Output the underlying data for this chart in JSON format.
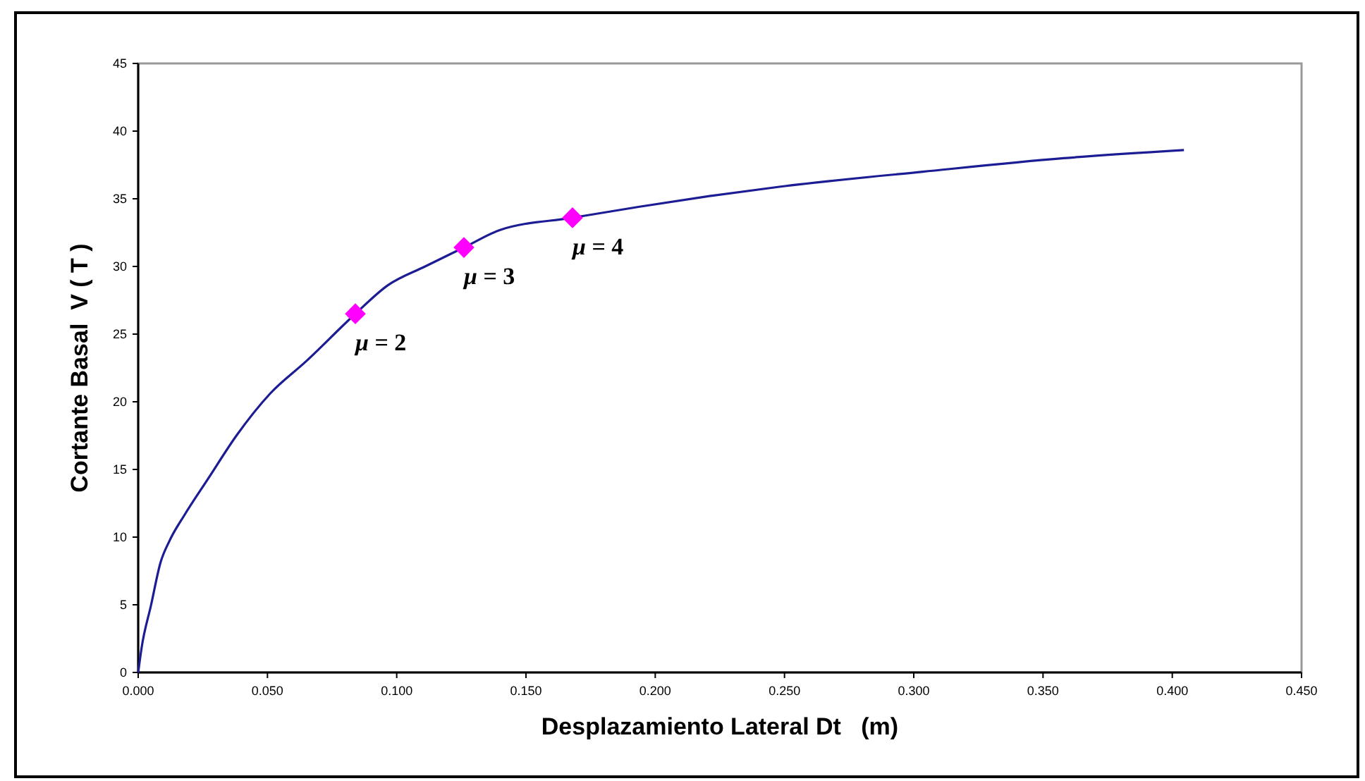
{
  "chart_data": {
    "type": "line",
    "xlabel": "Desplazamiento Lateral Dt   (m)",
    "ylabel": "Cortante Basal  V ( T )",
    "xlim": [
      0,
      0.45
    ],
    "xticks": [
      {
        "value": 0,
        "label": "0.000"
      },
      {
        "value": 0.05,
        "label": "0.050"
      },
      {
        "value": 0.1,
        "label": "0.100"
      },
      {
        "value": 0.15,
        "label": "0.150"
      },
      {
        "value": 0.2,
        "label": "0.200"
      },
      {
        "value": 0.25,
        "label": "0.250"
      },
      {
        "value": 0.3,
        "label": "0.300"
      },
      {
        "value": 0.35,
        "label": "0.350"
      },
      {
        "value": 0.4,
        "label": "0.400"
      },
      {
        "value": 0.45,
        "label": "0.450"
      }
    ],
    "ylim": [
      0,
      45
    ],
    "yticks": [
      0,
      5,
      10,
      15,
      20,
      25,
      30,
      35,
      40,
      45
    ],
    "grid": false,
    "series": [
      {
        "color": "#1c1c94",
        "marker": "none",
        "x": [
          0,
          0.0013,
          0.005,
          0.0086,
          0.0123,
          0.0178,
          0.027,
          0.038,
          0.051,
          0.065,
          0.084,
          0.0965,
          0.111,
          0.126,
          0.14,
          0.168,
          0.1935,
          0.221,
          0.2485,
          0.3035,
          0.358,
          0.4045
        ],
        "values": [
          0,
          1.8,
          5,
          8.1,
          9.8,
          11.6,
          14.3,
          17.5,
          20.6,
          23,
          26.5,
          28.6,
          30,
          31.4,
          32.7,
          33.6,
          34.4,
          35.2,
          35.9,
          37,
          38,
          38.6
        ]
      },
      {
        "type": "scatter",
        "color": "#ff00ff",
        "marker": "diamond",
        "x": [
          0.084,
          0.126,
          0.168
        ],
        "values": [
          26.5,
          31.4,
          33.6
        ]
      }
    ],
    "annotations": [
      {
        "text": "μ = 2",
        "x": 0.084,
        "y": 26.5
      },
      {
        "text": "μ = 3",
        "x": 0.126,
        "y": 31.4
      },
      {
        "text": "μ = 4",
        "x": 0.168,
        "y": 33.6
      }
    ]
  }
}
